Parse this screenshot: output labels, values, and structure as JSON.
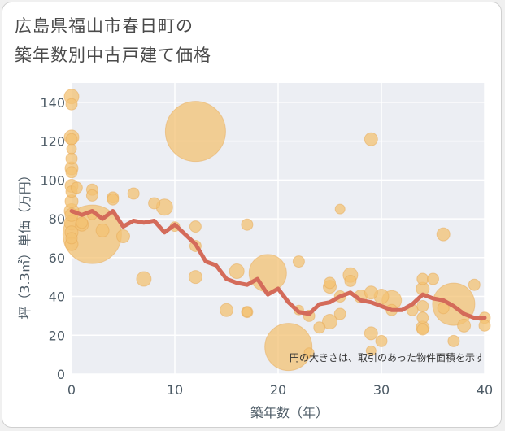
{
  "title": {
    "line1": "広島県福山市春日町の",
    "line2": "築年数別中古戸建て価格"
  },
  "chart_data": {
    "type": "scatter",
    "xlabel": "築年数（年）",
    "ylabel": "坪（3.3㎡）単価（万円）",
    "xlim": [
      0,
      40
    ],
    "ylim": [
      0,
      150
    ],
    "xticks": [
      0,
      10,
      20,
      30,
      40
    ],
    "yticks": [
      0,
      20,
      40,
      60,
      80,
      100,
      120,
      140
    ],
    "grid": true,
    "note": "円の大きさは、取引のあった物件面積を示す",
    "bubble_color": "#f3c173",
    "line_color": "#d46b5a",
    "bubbles": [
      {
        "x": 0,
        "y": 143,
        "s": 9
      },
      {
        "x": 0,
        "y": 139,
        "s": 7
      },
      {
        "x": 0,
        "y": 122,
        "s": 9
      },
      {
        "x": 0,
        "y": 121,
        "s": 7
      },
      {
        "x": 0,
        "y": 116,
        "s": 6
      },
      {
        "x": 0,
        "y": 111,
        "s": 7
      },
      {
        "x": 0,
        "y": 106,
        "s": 8
      },
      {
        "x": 0,
        "y": 104,
        "s": 7
      },
      {
        "x": 0,
        "y": 97,
        "s": 8
      },
      {
        "x": 0,
        "y": 94,
        "s": 7
      },
      {
        "x": 0,
        "y": 89,
        "s": 8
      },
      {
        "x": 0,
        "y": 84,
        "s": 9
      },
      {
        "x": 0,
        "y": 82,
        "s": 8
      },
      {
        "x": 0,
        "y": 78,
        "s": 9
      },
      {
        "x": 0,
        "y": 73,
        "s": 8
      },
      {
        "x": 0,
        "y": 70,
        "s": 7
      },
      {
        "x": 0,
        "y": 67,
        "s": 8
      },
      {
        "x": 0.5,
        "y": 96,
        "s": 7
      },
      {
        "x": 1,
        "y": 77,
        "s": 8
      },
      {
        "x": 1,
        "y": 78,
        "s": 7
      },
      {
        "x": 2,
        "y": 95,
        "s": 7
      },
      {
        "x": 2,
        "y": 92,
        "s": 7
      },
      {
        "x": 2,
        "y": 72,
        "s": 36
      },
      {
        "x": 2,
        "y": 82,
        "s": 6
      },
      {
        "x": 3,
        "y": 74,
        "s": 8
      },
      {
        "x": 4,
        "y": 91,
        "s": 7
      },
      {
        "x": 4,
        "y": 90,
        "s": 7
      },
      {
        "x": 5,
        "y": 71,
        "s": 8
      },
      {
        "x": 6,
        "y": 93,
        "s": 7
      },
      {
        "x": 7,
        "y": 49,
        "s": 9
      },
      {
        "x": 8,
        "y": 88,
        "s": 7
      },
      {
        "x": 9,
        "y": 86,
        "s": 10
      },
      {
        "x": 10,
        "y": 76,
        "s": 6
      },
      {
        "x": 12,
        "y": 125,
        "s": 37
      },
      {
        "x": 12,
        "y": 76,
        "s": 7
      },
      {
        "x": 12,
        "y": 66,
        "s": 7
      },
      {
        "x": 12,
        "y": 50,
        "s": 8
      },
      {
        "x": 15,
        "y": 33,
        "s": 8
      },
      {
        "x": 16,
        "y": 53,
        "s": 9
      },
      {
        "x": 17,
        "y": 77,
        "s": 7
      },
      {
        "x": 17,
        "y": 32,
        "s": 7
      },
      {
        "x": 17,
        "y": 32,
        "s": 6
      },
      {
        "x": 19,
        "y": 52,
        "s": 23
      },
      {
        "x": 21,
        "y": 14,
        "s": 29
      },
      {
        "x": 22,
        "y": 58,
        "s": 7
      },
      {
        "x": 22,
        "y": 33,
        "s": 6
      },
      {
        "x": 23,
        "y": 30,
        "s": 7
      },
      {
        "x": 23,
        "y": 11,
        "s": 6
      },
      {
        "x": 24,
        "y": 24,
        "s": 7
      },
      {
        "x": 25,
        "y": 47,
        "s": 7
      },
      {
        "x": 25,
        "y": 45,
        "s": 8
      },
      {
        "x": 25,
        "y": 27,
        "s": 9
      },
      {
        "x": 26,
        "y": 85,
        "s": 6
      },
      {
        "x": 26,
        "y": 40,
        "s": 7
      },
      {
        "x": 26,
        "y": 31,
        "s": 7
      },
      {
        "x": 27,
        "y": 51,
        "s": 9
      },
      {
        "x": 27,
        "y": 48,
        "s": 7
      },
      {
        "x": 28,
        "y": 40,
        "s": 8
      },
      {
        "x": 29,
        "y": 121,
        "s": 8
      },
      {
        "x": 29,
        "y": 42,
        "s": 8
      },
      {
        "x": 29,
        "y": 21,
        "s": 8
      },
      {
        "x": 29,
        "y": 12,
        "s": 6
      },
      {
        "x": 30,
        "y": 40,
        "s": 9
      },
      {
        "x": 30,
        "y": 17,
        "s": 7
      },
      {
        "x": 31,
        "y": 38,
        "s": 12
      },
      {
        "x": 31,
        "y": 33,
        "s": 7
      },
      {
        "x": 33,
        "y": 33,
        "s": 7
      },
      {
        "x": 34,
        "y": 49,
        "s": 7
      },
      {
        "x": 34,
        "y": 44,
        "s": 8
      },
      {
        "x": 34,
        "y": 35,
        "s": 7
      },
      {
        "x": 34,
        "y": 29,
        "s": 7
      },
      {
        "x": 34,
        "y": 24,
        "s": 8
      },
      {
        "x": 34,
        "y": 23,
        "s": 7
      },
      {
        "x": 35,
        "y": 49,
        "s": 7
      },
      {
        "x": 36,
        "y": 72,
        "s": 8
      },
      {
        "x": 36,
        "y": 34,
        "s": 7
      },
      {
        "x": 37,
        "y": 36,
        "s": 26
      },
      {
        "x": 37,
        "y": 17,
        "s": 7
      },
      {
        "x": 38,
        "y": 25,
        "s": 8
      },
      {
        "x": 39,
        "y": 46,
        "s": 7
      },
      {
        "x": 40,
        "y": 29,
        "s": 7
      },
      {
        "x": 40,
        "y": 25,
        "s": 7
      }
    ],
    "line": {
      "x": [
        0,
        1,
        2,
        3,
        4,
        5,
        6,
        7,
        8,
        9,
        10,
        11,
        12,
        13,
        14,
        15,
        16,
        17,
        18,
        19,
        20,
        21,
        22,
        23,
        24,
        25,
        26,
        27,
        28,
        29,
        30,
        31,
        32,
        33,
        34,
        35,
        36,
        37,
        38,
        39,
        40
      ],
      "y": [
        84,
        82,
        84,
        80,
        84,
        76,
        79,
        78,
        79,
        73,
        77,
        72,
        67,
        58,
        56,
        49,
        47,
        46,
        49,
        41,
        44,
        37,
        32,
        31,
        36,
        37,
        40,
        42,
        38,
        37,
        35,
        33,
        33,
        36,
        41,
        39,
        38,
        35,
        31,
        29,
        29
      ]
    }
  }
}
